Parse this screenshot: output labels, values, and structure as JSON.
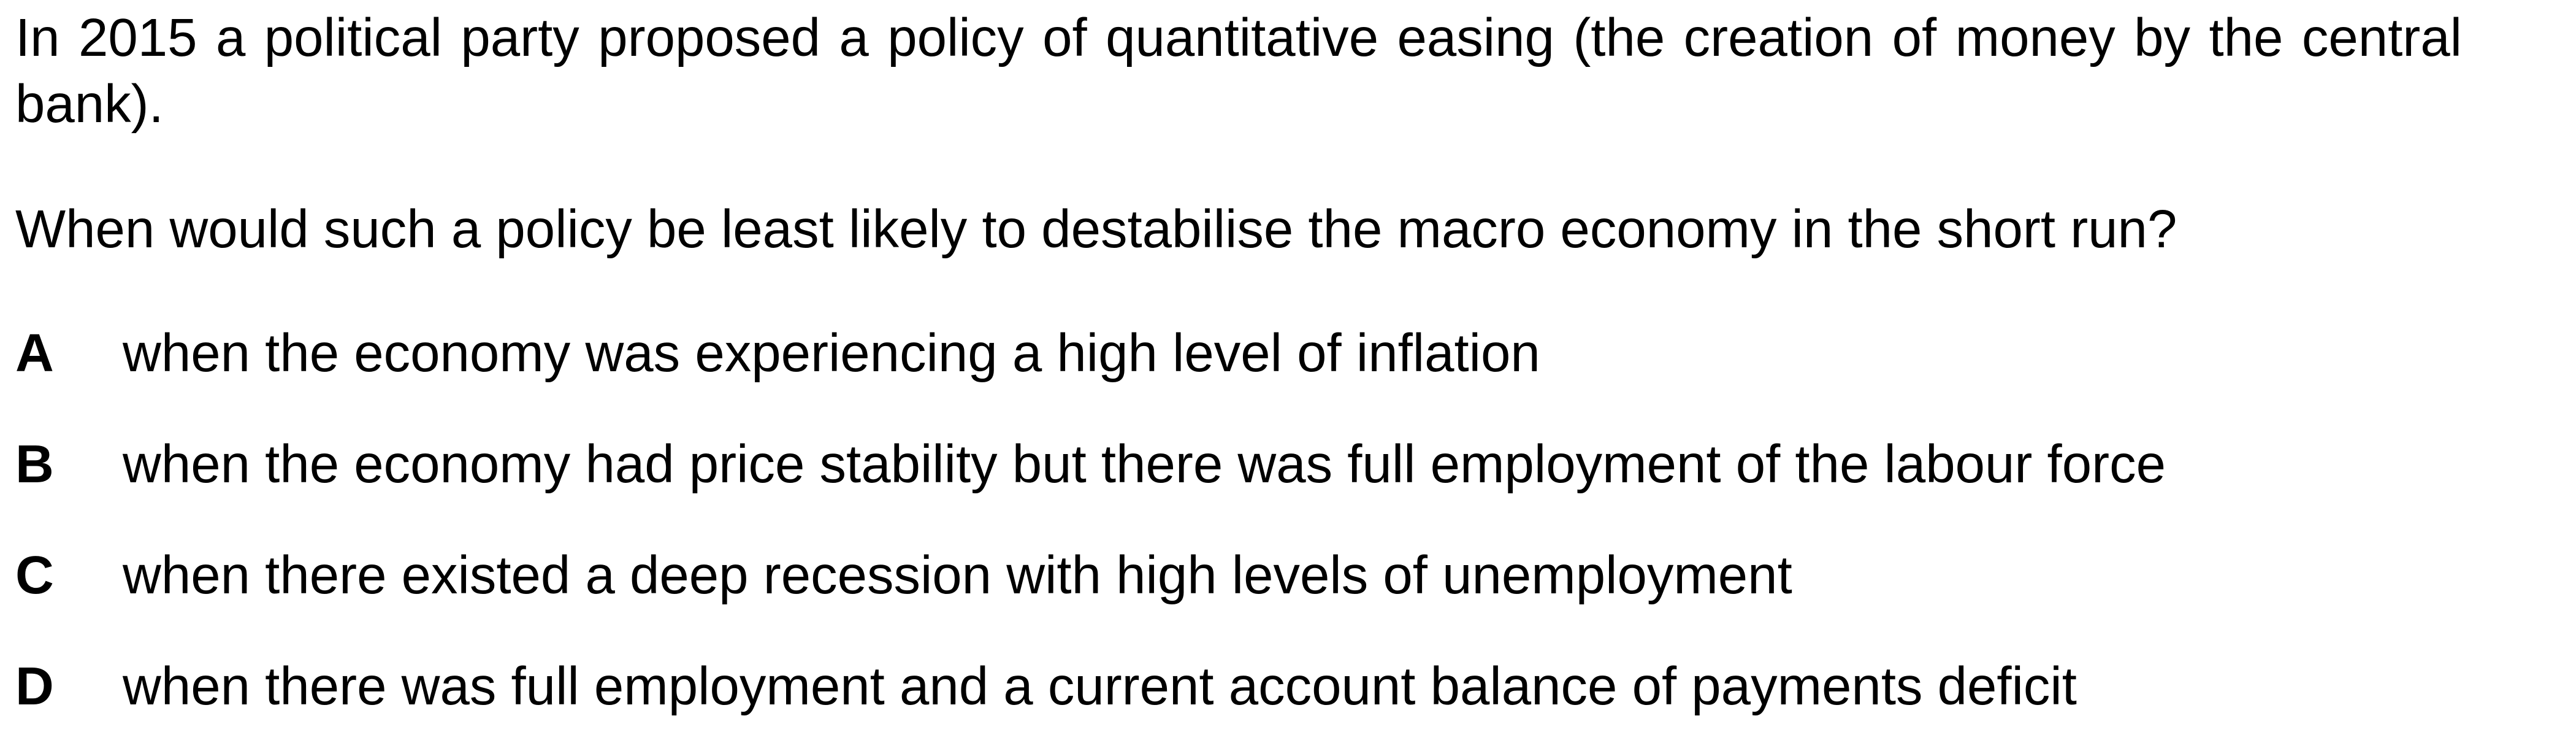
{
  "question": {
    "stem": "In 2015 a political party proposed a policy of quantitative easing (the creation of money by the central bank).",
    "prompt": "When would such a policy be least likely to destabilise the macro economy in the short run?"
  },
  "options": [
    {
      "letter": "A",
      "text": "when the economy was experiencing a high level of inflation"
    },
    {
      "letter": "B",
      "text": "when the economy had price stability but there was full employment of the labour force"
    },
    {
      "letter": "C",
      "text": "when there existed a deep recession with high levels of unemployment"
    },
    {
      "letter": "D",
      "text": "when there was full employment and a current account balance of payments deficit"
    }
  ]
}
